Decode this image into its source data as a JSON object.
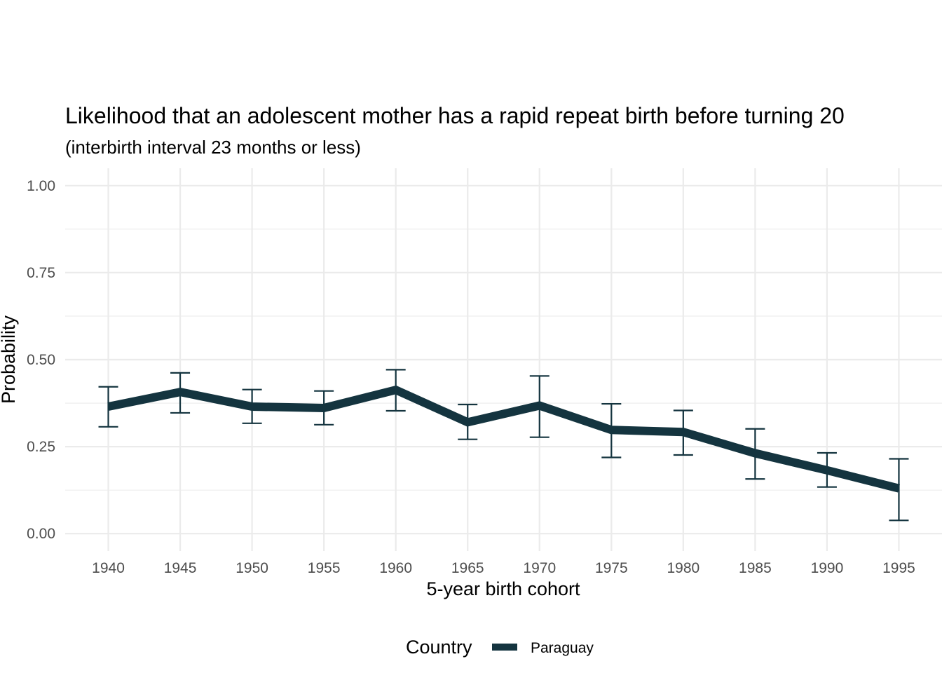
{
  "chart_data": {
    "type": "line",
    "title": "Likelihood that an adolescent mother has a rapid repeat birth before turning 20",
    "subtitle": "(interbirth interval 23 months or less)",
    "xlabel": "5-year birth cohort",
    "ylabel": "Probability",
    "x": [
      1940,
      1945,
      1950,
      1955,
      1960,
      1965,
      1970,
      1975,
      1980,
      1985,
      1990,
      1995
    ],
    "x_tick_labels": [
      "1940",
      "1945",
      "1950",
      "1955",
      "1960",
      "1965",
      "1970",
      "1975",
      "1980",
      "1985",
      "1990",
      "1995"
    ],
    "xlim": [
      1937,
      1998
    ],
    "ylim": [
      -0.05,
      1.05
    ],
    "y_ticks": [
      0,
      0.25,
      0.5,
      0.75,
      1.0
    ],
    "y_tick_labels": [
      "0.00",
      "0.25",
      "0.50",
      "0.75",
      "1.00"
    ],
    "grid": true,
    "legend": {
      "title": "Country",
      "position": "bottom"
    },
    "series": [
      {
        "name": "Paraguay",
        "color": "#14343f",
        "values": [
          0.365,
          0.407,
          0.365,
          0.361,
          0.413,
          0.32,
          0.368,
          0.298,
          0.292,
          0.231,
          0.182,
          0.13
        ],
        "lower": [
          0.307,
          0.347,
          0.317,
          0.313,
          0.353,
          0.271,
          0.277,
          0.219,
          0.226,
          0.157,
          0.134,
          0.038
        ],
        "upper": [
          0.422,
          0.462,
          0.414,
          0.41,
          0.471,
          0.371,
          0.453,
          0.373,
          0.354,
          0.301,
          0.232,
          0.215
        ]
      }
    ]
  }
}
